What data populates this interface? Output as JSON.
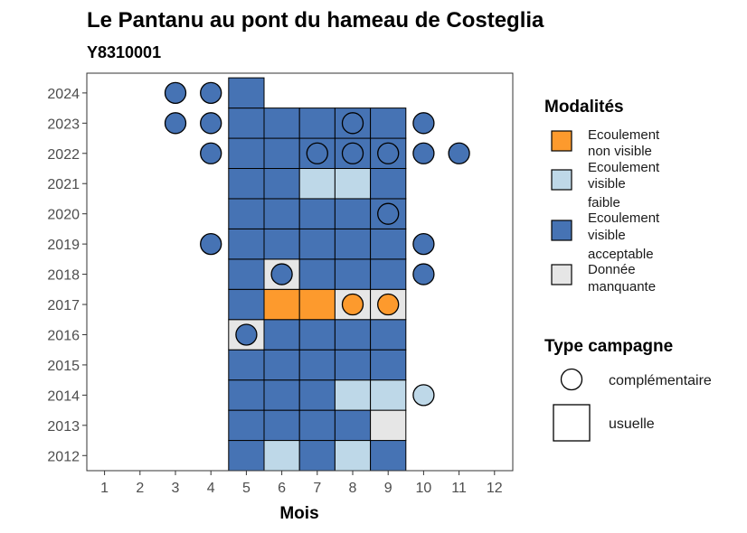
{
  "chart_data": {
    "type": "heatmap",
    "title": "Le Pantanu au pont du hameau de Costeglia",
    "subtitle": "Y8310001",
    "xlabel": "Mois",
    "ylabel": "",
    "x_ticks": [
      "1",
      "2",
      "3",
      "4",
      "5",
      "6",
      "7",
      "8",
      "9",
      "10",
      "11",
      "12"
    ],
    "y_ticks": [
      "2012",
      "2013",
      "2014",
      "2015",
      "2016",
      "2017",
      "2018",
      "2019",
      "2020",
      "2021",
      "2022",
      "2023",
      "2024"
    ],
    "xlim": [
      0.5,
      12.5
    ],
    "ylim": [
      2011.5,
      2024.5
    ],
    "colors": {
      "Ecoulement non visible": "#fd9a2d",
      "Ecoulement visible faible": "#bed8e8",
      "Ecoulement visible acceptable": "#4673b4",
      "Donnée manquante": "#e6e6e6"
    },
    "usuelle": [
      {
        "year": 2012,
        "month": 5,
        "modalite": "Ecoulement visible acceptable"
      },
      {
        "year": 2012,
        "month": 6,
        "modalite": "Ecoulement visible faible"
      },
      {
        "year": 2012,
        "month": 7,
        "modalite": "Ecoulement visible acceptable"
      },
      {
        "year": 2012,
        "month": 8,
        "modalite": "Ecoulement visible faible"
      },
      {
        "year": 2012,
        "month": 9,
        "modalite": "Ecoulement visible acceptable"
      },
      {
        "year": 2013,
        "month": 5,
        "modalite": "Ecoulement visible acceptable"
      },
      {
        "year": 2013,
        "month": 6,
        "modalite": "Ecoulement visible acceptable"
      },
      {
        "year": 2013,
        "month": 7,
        "modalite": "Ecoulement visible acceptable"
      },
      {
        "year": 2013,
        "month": 8,
        "modalite": "Ecoulement visible acceptable"
      },
      {
        "year": 2013,
        "month": 9,
        "modalite": "Donnée manquante"
      },
      {
        "year": 2014,
        "month": 5,
        "modalite": "Ecoulement visible acceptable"
      },
      {
        "year": 2014,
        "month": 6,
        "modalite": "Ecoulement visible acceptable"
      },
      {
        "year": 2014,
        "month": 7,
        "modalite": "Ecoulement visible acceptable"
      },
      {
        "year": 2014,
        "month": 8,
        "modalite": "Ecoulement visible faible"
      },
      {
        "year": 2014,
        "month": 9,
        "modalite": "Ecoulement visible faible"
      },
      {
        "year": 2015,
        "month": 5,
        "modalite": "Ecoulement visible acceptable"
      },
      {
        "year": 2015,
        "month": 6,
        "modalite": "Ecoulement visible acceptable"
      },
      {
        "year": 2015,
        "month": 7,
        "modalite": "Ecoulement visible acceptable"
      },
      {
        "year": 2015,
        "month": 8,
        "modalite": "Ecoulement visible acceptable"
      },
      {
        "year": 2015,
        "month": 9,
        "modalite": "Ecoulement visible acceptable"
      },
      {
        "year": 2016,
        "month": 5,
        "modalite": "Donnée manquante"
      },
      {
        "year": 2016,
        "month": 6,
        "modalite": "Ecoulement visible acceptable"
      },
      {
        "year": 2016,
        "month": 7,
        "modalite": "Ecoulement visible acceptable"
      },
      {
        "year": 2016,
        "month": 8,
        "modalite": "Ecoulement visible acceptable"
      },
      {
        "year": 2016,
        "month": 9,
        "modalite": "Ecoulement visible acceptable"
      },
      {
        "year": 2017,
        "month": 5,
        "modalite": "Ecoulement visible acceptable"
      },
      {
        "year": 2017,
        "month": 6,
        "modalite": "Ecoulement non visible"
      },
      {
        "year": 2017,
        "month": 7,
        "modalite": "Ecoulement non visible"
      },
      {
        "year": 2017,
        "month": 8,
        "modalite": "Donnée manquante"
      },
      {
        "year": 2017,
        "month": 9,
        "modalite": "Donnée manquante"
      },
      {
        "year": 2018,
        "month": 5,
        "modalite": "Ecoulement visible acceptable"
      },
      {
        "year": 2018,
        "month": 6,
        "modalite": "Donnée manquante"
      },
      {
        "year": 2018,
        "month": 7,
        "modalite": "Ecoulement visible acceptable"
      },
      {
        "year": 2018,
        "month": 8,
        "modalite": "Ecoulement visible acceptable"
      },
      {
        "year": 2018,
        "month": 9,
        "modalite": "Ecoulement visible acceptable"
      },
      {
        "year": 2019,
        "month": 5,
        "modalite": "Ecoulement visible acceptable"
      },
      {
        "year": 2019,
        "month": 6,
        "modalite": "Ecoulement visible acceptable"
      },
      {
        "year": 2019,
        "month": 7,
        "modalite": "Ecoulement visible acceptable"
      },
      {
        "year": 2019,
        "month": 8,
        "modalite": "Ecoulement visible acceptable"
      },
      {
        "year": 2019,
        "month": 9,
        "modalite": "Ecoulement visible acceptable"
      },
      {
        "year": 2020,
        "month": 5,
        "modalite": "Ecoulement visible acceptable"
      },
      {
        "year": 2020,
        "month": 6,
        "modalite": "Ecoulement visible acceptable"
      },
      {
        "year": 2020,
        "month": 7,
        "modalite": "Ecoulement visible acceptable"
      },
      {
        "year": 2020,
        "month": 8,
        "modalite": "Ecoulement visible acceptable"
      },
      {
        "year": 2020,
        "month": 9,
        "modalite": "Ecoulement visible acceptable"
      },
      {
        "year": 2021,
        "month": 5,
        "modalite": "Ecoulement visible acceptable"
      },
      {
        "year": 2021,
        "month": 6,
        "modalite": "Ecoulement visible acceptable"
      },
      {
        "year": 2021,
        "month": 7,
        "modalite": "Ecoulement visible faible"
      },
      {
        "year": 2021,
        "month": 8,
        "modalite": "Ecoulement visible faible"
      },
      {
        "year": 2021,
        "month": 9,
        "modalite": "Ecoulement visible acceptable"
      },
      {
        "year": 2022,
        "month": 5,
        "modalite": "Ecoulement visible acceptable"
      },
      {
        "year": 2022,
        "month": 6,
        "modalite": "Ecoulement visible acceptable"
      },
      {
        "year": 2022,
        "month": 7,
        "modalite": "Ecoulement visible acceptable"
      },
      {
        "year": 2022,
        "month": 8,
        "modalite": "Ecoulement visible acceptable"
      },
      {
        "year": 2022,
        "month": 9,
        "modalite": "Ecoulement visible acceptable"
      },
      {
        "year": 2023,
        "month": 5,
        "modalite": "Ecoulement visible acceptable"
      },
      {
        "year": 2023,
        "month": 6,
        "modalite": "Ecoulement visible acceptable"
      },
      {
        "year": 2023,
        "month": 7,
        "modalite": "Ecoulement visible acceptable"
      },
      {
        "year": 2023,
        "month": 8,
        "modalite": "Ecoulement visible acceptable"
      },
      {
        "year": 2023,
        "month": 9,
        "modalite": "Ecoulement visible acceptable"
      },
      {
        "year": 2024,
        "month": 5,
        "modalite": "Ecoulement visible acceptable"
      }
    ],
    "complementaire": [
      {
        "year": 2014,
        "month": 10,
        "modalite": "Ecoulement visible faible"
      },
      {
        "year": 2016,
        "month": 5,
        "modalite": "Ecoulement visible acceptable"
      },
      {
        "year": 2017,
        "month": 8,
        "modalite": "Ecoulement non visible"
      },
      {
        "year": 2017,
        "month": 9,
        "modalite": "Ecoulement non visible"
      },
      {
        "year": 2018,
        "month": 6,
        "modalite": "Ecoulement visible acceptable"
      },
      {
        "year": 2018,
        "month": 10,
        "modalite": "Ecoulement visible acceptable"
      },
      {
        "year": 2019,
        "month": 4,
        "modalite": "Ecoulement visible acceptable"
      },
      {
        "year": 2019,
        "month": 10,
        "modalite": "Ecoulement visible acceptable"
      },
      {
        "year": 2020,
        "month": 9,
        "modalite": "Ecoulement visible acceptable"
      },
      {
        "year": 2022,
        "month": 4,
        "modalite": "Ecoulement visible acceptable"
      },
      {
        "year": 2022,
        "month": 7,
        "modalite": "Ecoulement visible acceptable"
      },
      {
        "year": 2022,
        "month": 8,
        "modalite": "Ecoulement visible acceptable"
      },
      {
        "year": 2022,
        "month": 9,
        "modalite": "Ecoulement visible acceptable"
      },
      {
        "year": 2022,
        "month": 10,
        "modalite": "Ecoulement visible acceptable"
      },
      {
        "year": 2022,
        "month": 11,
        "modalite": "Ecoulement visible acceptable"
      },
      {
        "year": 2023,
        "month": 3,
        "modalite": "Ecoulement visible acceptable"
      },
      {
        "year": 2023,
        "month": 4,
        "modalite": "Ecoulement visible acceptable"
      },
      {
        "year": 2023,
        "month": 8,
        "modalite": "Ecoulement visible acceptable"
      },
      {
        "year": 2023,
        "month": 10,
        "modalite": "Ecoulement visible acceptable"
      },
      {
        "year": 2024,
        "month": 3,
        "modalite": "Ecoulement visible acceptable"
      },
      {
        "year": 2024,
        "month": 4,
        "modalite": "Ecoulement visible acceptable"
      }
    ],
    "legend": {
      "position": "right",
      "modalites_title": "Modalités",
      "modalites": [
        {
          "lines": [
            "Ecoulement",
            "non visible"
          ],
          "key": "Ecoulement non visible"
        },
        {
          "lines": [
            "Ecoulement",
            "visible",
            "faible"
          ],
          "key": "Ecoulement visible faible"
        },
        {
          "lines": [
            "Ecoulement",
            "visible",
            "acceptable"
          ],
          "key": "Ecoulement visible acceptable"
        },
        {
          "lines": [
            "Donnée",
            "manquante"
          ],
          "key": "Donnée manquante"
        }
      ],
      "campagne_title": "Type campagne",
      "campagne": [
        "complémentaire",
        "usuelle"
      ]
    },
    "grid": false
  }
}
